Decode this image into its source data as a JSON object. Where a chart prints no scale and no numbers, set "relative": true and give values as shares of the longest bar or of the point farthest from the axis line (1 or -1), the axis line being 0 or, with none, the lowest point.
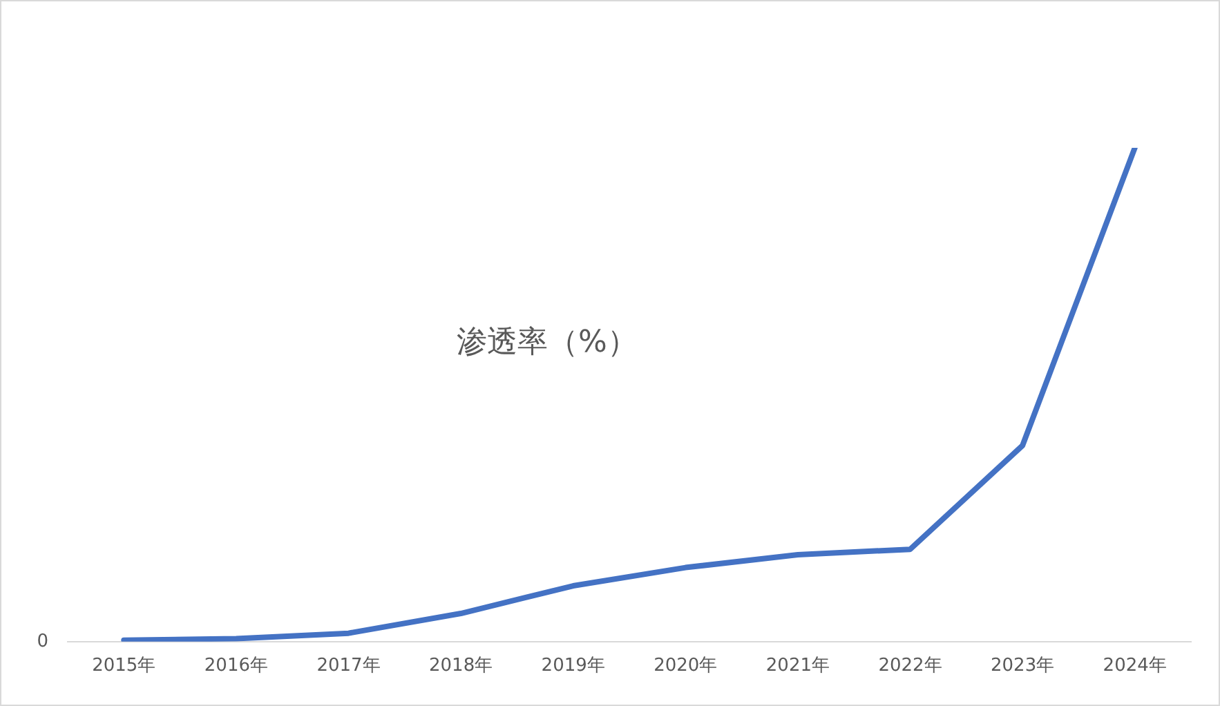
{
  "chart_data": {
    "type": "line",
    "title": "渗透率（%）",
    "relative": true,
    "categories": [
      "2015年",
      "2016年",
      "2017年",
      "2018年",
      "2019年",
      "2020年",
      "2021年",
      "2022年",
      "2023年",
      "2024年"
    ],
    "series": [
      {
        "color": "#4472c4",
        "values": [
          0.003,
          0.006,
          0.017,
          0.057,
          0.113,
          0.15,
          0.176,
          0.187,
          0.397,
          1
        ]
      }
    ],
    "annotations": [
      "0"
    ],
    "grid": false,
    "legend": false,
    "marker": "none",
    "line_style": "solid"
  }
}
